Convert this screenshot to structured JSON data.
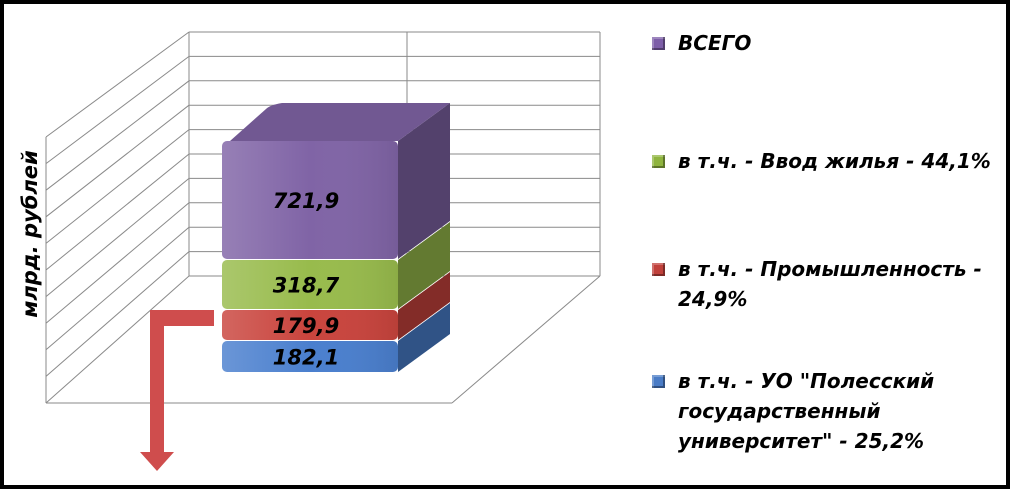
{
  "chart_data": {
    "type": "bar",
    "stacked": true,
    "ylabel": "млрд. рублей",
    "categories": [
      ""
    ],
    "series": [
      {
        "name": "в т.ч.  - УО \"Полесский государственный университет\" - 25,2%",
        "values": [
          182.1
        ],
        "label": "182,1",
        "color": "#4a7fce"
      },
      {
        "name": "в т.ч.  - Промышленность - 24,9%",
        "values": [
          179.9
        ],
        "label": "179,9",
        "color": "#c9443d"
      },
      {
        "name": "в т.ч.  - Ввод жилья - 44,1%",
        "values": [
          318.7
        ],
        "label": "318,7",
        "color": "#98bb4c"
      },
      {
        "name": "ВСЕГО",
        "values": [
          721.9
        ],
        "label": "721,9",
        "color": "#8064a6"
      }
    ],
    "legend_order": [
      3,
      2,
      1,
      0
    ],
    "legend_position": "right",
    "grid": true,
    "projection": "3d"
  },
  "legend": {
    "items": [
      {
        "label": "ВСЕГО",
        "color": "#7d5ea8"
      },
      {
        "label": "в т.ч.  - Ввод жилья - 44,1%",
        "color": "#8fb43f"
      },
      {
        "label": "в т.ч.  - Промышленность - 24,9%",
        "color": "#c0413b"
      },
      {
        "label": "в т.ч.  - УО \"Полесский государственный университет\" - 25,2%",
        "color": "#4a7cc6"
      }
    ]
  },
  "annotation": {
    "arrow_color": "#cf4d4d"
  }
}
